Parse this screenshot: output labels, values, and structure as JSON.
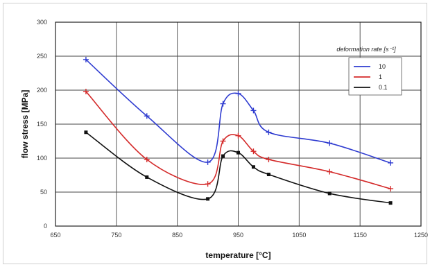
{
  "chart_data": {
    "type": "line",
    "xlabel": "temperature [°C]",
    "ylabel": "flow stress [MPa]",
    "xlim": [
      650,
      1250
    ],
    "ylim": [
      0,
      300
    ],
    "x_ticks": [
      "650",
      "750",
      "850",
      "950",
      "1050",
      "1150",
      "1250"
    ],
    "y_ticks": [
      "0",
      "50",
      "100",
      "150",
      "200",
      "250",
      "300"
    ],
    "grid": true,
    "legend_title": "deformation rate [s⁻¹]",
    "legend_position": "top-right",
    "series": [
      {
        "name": "10",
        "color": "#2e3bd0",
        "marker": "plus",
        "x": [
          700,
          800,
          900,
          925,
          950,
          975,
          1000,
          1100,
          1200
        ],
        "y": [
          245,
          162,
          94,
          180,
          195,
          170,
          138,
          122,
          93
        ]
      },
      {
        "name": "1",
        "color": "#d42a2a",
        "marker": "plus",
        "x": [
          700,
          800,
          900,
          925,
          950,
          975,
          1000,
          1100,
          1200
        ],
        "y": [
          198,
          98,
          62,
          125,
          133,
          110,
          98,
          80,
          55
        ]
      },
      {
        "name": "0.1",
        "color": "#111111",
        "marker": "square",
        "x": [
          700,
          800,
          900,
          925,
          950,
          975,
          1000,
          1100,
          1200
        ],
        "y": [
          138,
          72,
          40,
          103,
          108,
          87,
          76,
          48,
          34
        ]
      }
    ]
  }
}
